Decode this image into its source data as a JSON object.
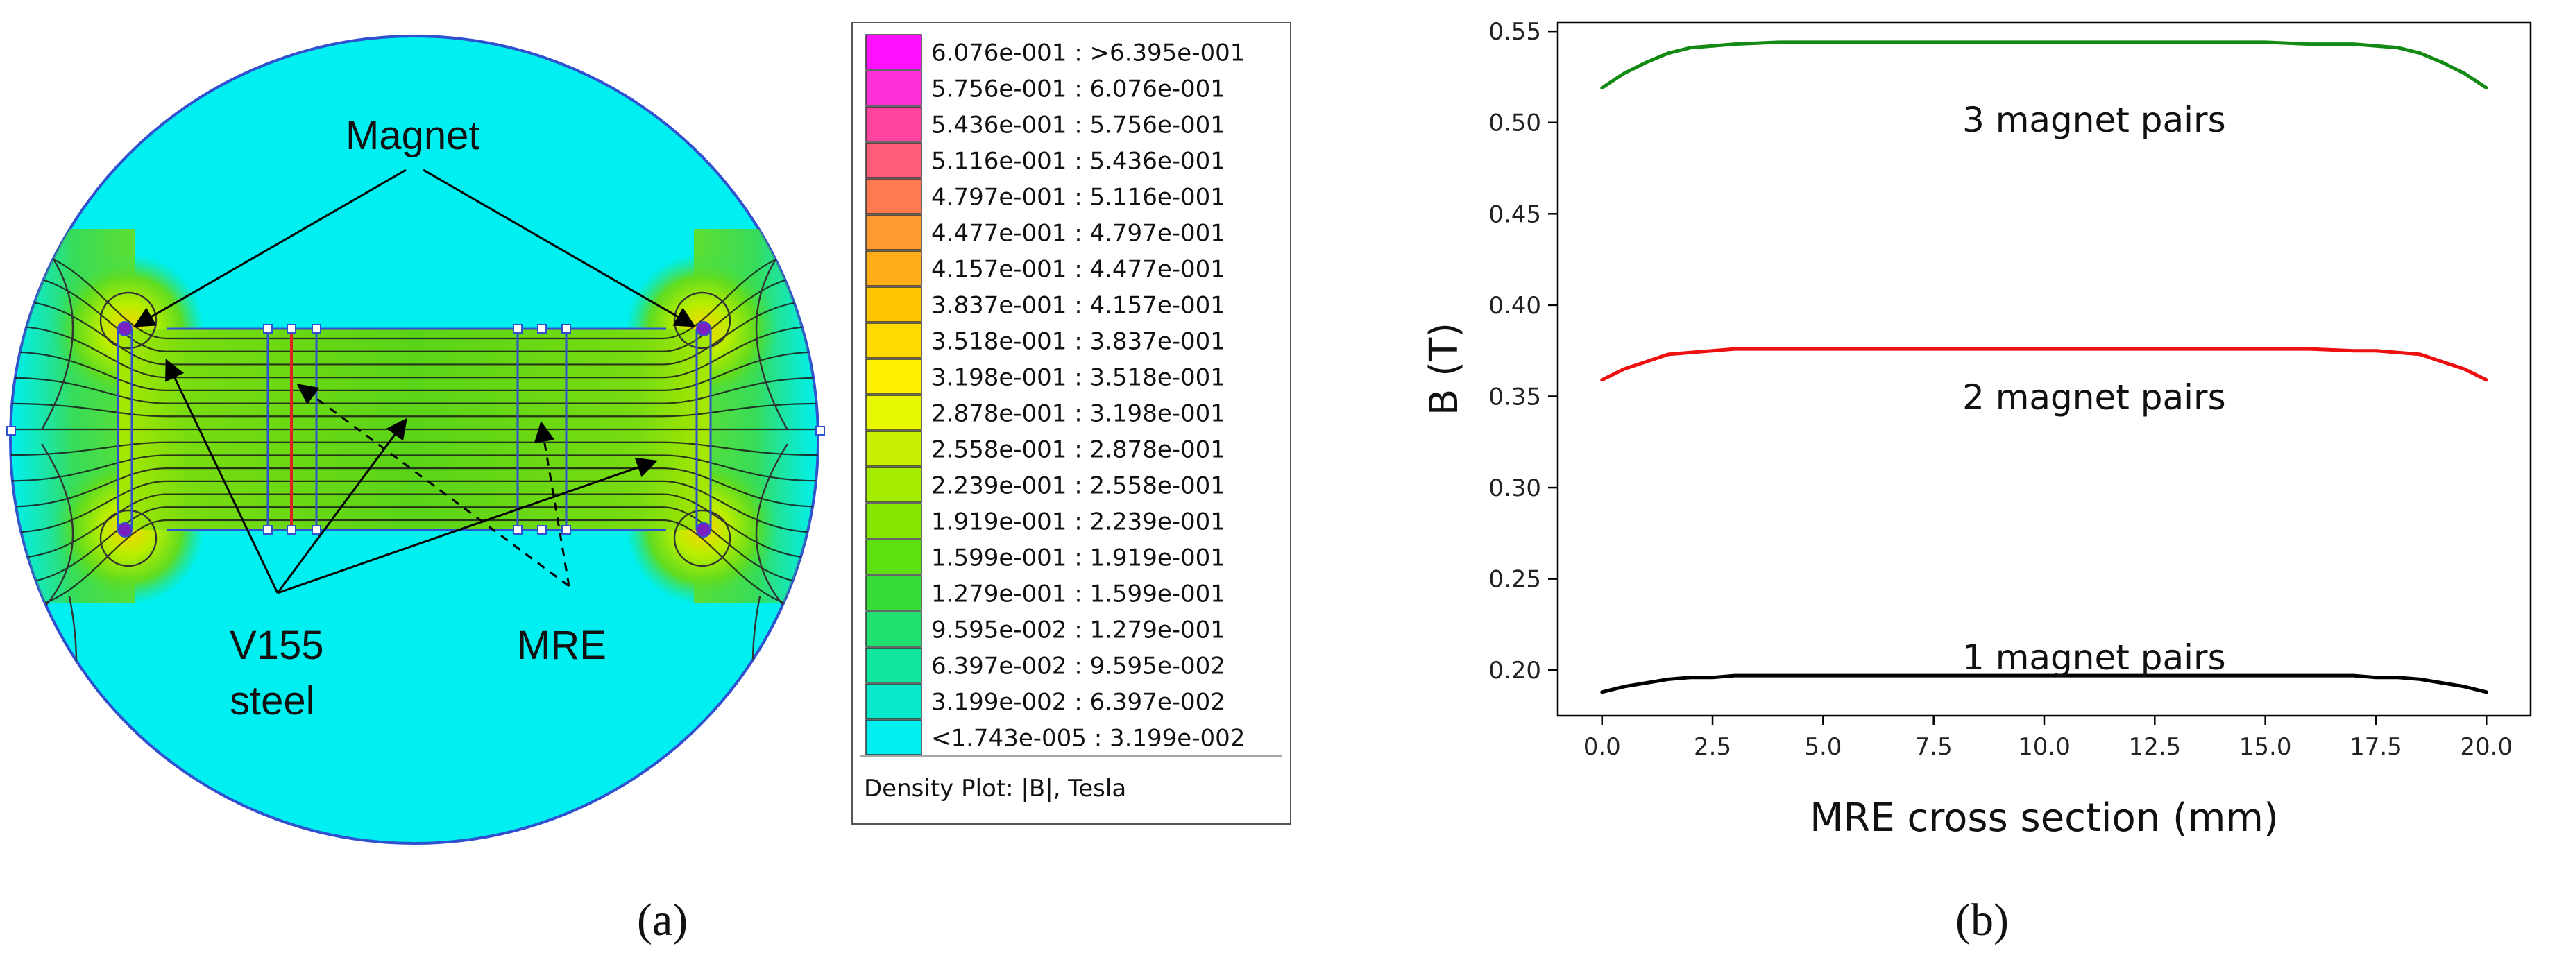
{
  "panel_a": {
    "caption": "(a)",
    "annotations": {
      "magnet": "Magnet",
      "steel_line1": "V155",
      "steel_line2": "steel",
      "mre": "MRE"
    },
    "legend": {
      "title": "Density Plot: |B|, Tesla",
      "entries": [
        {
          "label": "6.076e-001 : >6.395e-001",
          "color": "#ff10ff"
        },
        {
          "label": "5.756e-001 : 6.076e-001",
          "color": "#ff30d8"
        },
        {
          "label": "5.436e-001 : 5.756e-001",
          "color": "#ff44a0"
        },
        {
          "label": "5.116e-001 : 5.436e-001",
          "color": "#ff5c78"
        },
        {
          "label": "4.797e-001 : 5.116e-001",
          "color": "#ff7a50"
        },
        {
          "label": "4.477e-001 : 4.797e-001",
          "color": "#ff9a30"
        },
        {
          "label": "4.157e-001 : 4.477e-001",
          "color": "#ffae1a"
        },
        {
          "label": "3.837e-001 : 4.157e-001",
          "color": "#ffc400"
        },
        {
          "label": "3.518e-001 : 3.837e-001",
          "color": "#ffda00"
        },
        {
          "label": "3.198e-001 : 3.518e-001",
          "color": "#fff000"
        },
        {
          "label": "2.878e-001 : 3.198e-001",
          "color": "#e8f800"
        },
        {
          "label": "2.558e-001 : 2.878e-001",
          "color": "#c8f000"
        },
        {
          "label": "2.239e-001 : 2.558e-001",
          "color": "#a6ec00"
        },
        {
          "label": "1.919e-001 : 2.239e-001",
          "color": "#84e600"
        },
        {
          "label": "1.599e-001 : 1.919e-001",
          "color": "#5ce010"
        },
        {
          "label": "1.279e-001 : 1.599e-001",
          "color": "#38dc38"
        },
        {
          "label": "9.595e-002 : 1.279e-001",
          "color": "#20e070"
        },
        {
          "label": "6.397e-002 : 9.595e-002",
          "color": "#10e6a0"
        },
        {
          "label": "3.199e-002 : 6.397e-002",
          "color": "#08eacc"
        },
        {
          "label": "<1.743e-005 : 3.199e-002",
          "color": "#00f0f0"
        }
      ]
    },
    "colors": {
      "background_field": "#00eff0",
      "outline": "#3050d0",
      "mre_bar": "#e02020"
    }
  },
  "chart_data": {
    "type": "line",
    "caption": "(b)",
    "xlabel": "MRE cross section (mm)",
    "ylabel": "B (T)",
    "xlim": [
      -1.0,
      21.0
    ],
    "ylim": [
      0.175,
      0.555
    ],
    "xticks": [
      "0.0",
      "2.5",
      "5.0",
      "7.5",
      "10.0",
      "12.5",
      "15.0",
      "17.5",
      "20.0"
    ],
    "yticks": [
      "0.20",
      "0.25",
      "0.30",
      "0.35",
      "0.40",
      "0.45",
      "0.50",
      "0.55"
    ],
    "x": [
      0,
      0.5,
      1.0,
      1.5,
      2.0,
      2.5,
      3.0,
      4.0,
      5.0,
      7.5,
      10.0,
      12.5,
      15.0,
      16.0,
      17.0,
      17.5,
      18.0,
      18.5,
      19.0,
      19.5,
      20.0
    ],
    "series": [
      {
        "name": "3 magnet pairs",
        "color": "#138a13",
        "values": [
          0.519,
          0.527,
          0.533,
          0.538,
          0.541,
          0.542,
          0.543,
          0.544,
          0.544,
          0.544,
          0.544,
          0.544,
          0.544,
          0.543,
          0.543,
          0.542,
          0.541,
          0.538,
          0.533,
          0.527,
          0.519
        ]
      },
      {
        "name": "2 magnet pairs",
        "color": "#ee1010",
        "values": [
          0.359,
          0.365,
          0.369,
          0.373,
          0.374,
          0.375,
          0.376,
          0.376,
          0.376,
          0.376,
          0.376,
          0.376,
          0.376,
          0.376,
          0.375,
          0.375,
          0.374,
          0.373,
          0.369,
          0.365,
          0.359
        ]
      },
      {
        "name": "1 magnet pairs",
        "color": "#000000",
        "values": [
          0.188,
          0.191,
          0.193,
          0.195,
          0.196,
          0.196,
          0.197,
          0.197,
          0.197,
          0.197,
          0.197,
          0.197,
          0.197,
          0.197,
          0.197,
          0.196,
          0.196,
          0.195,
          0.193,
          0.191,
          0.188
        ]
      }
    ]
  }
}
